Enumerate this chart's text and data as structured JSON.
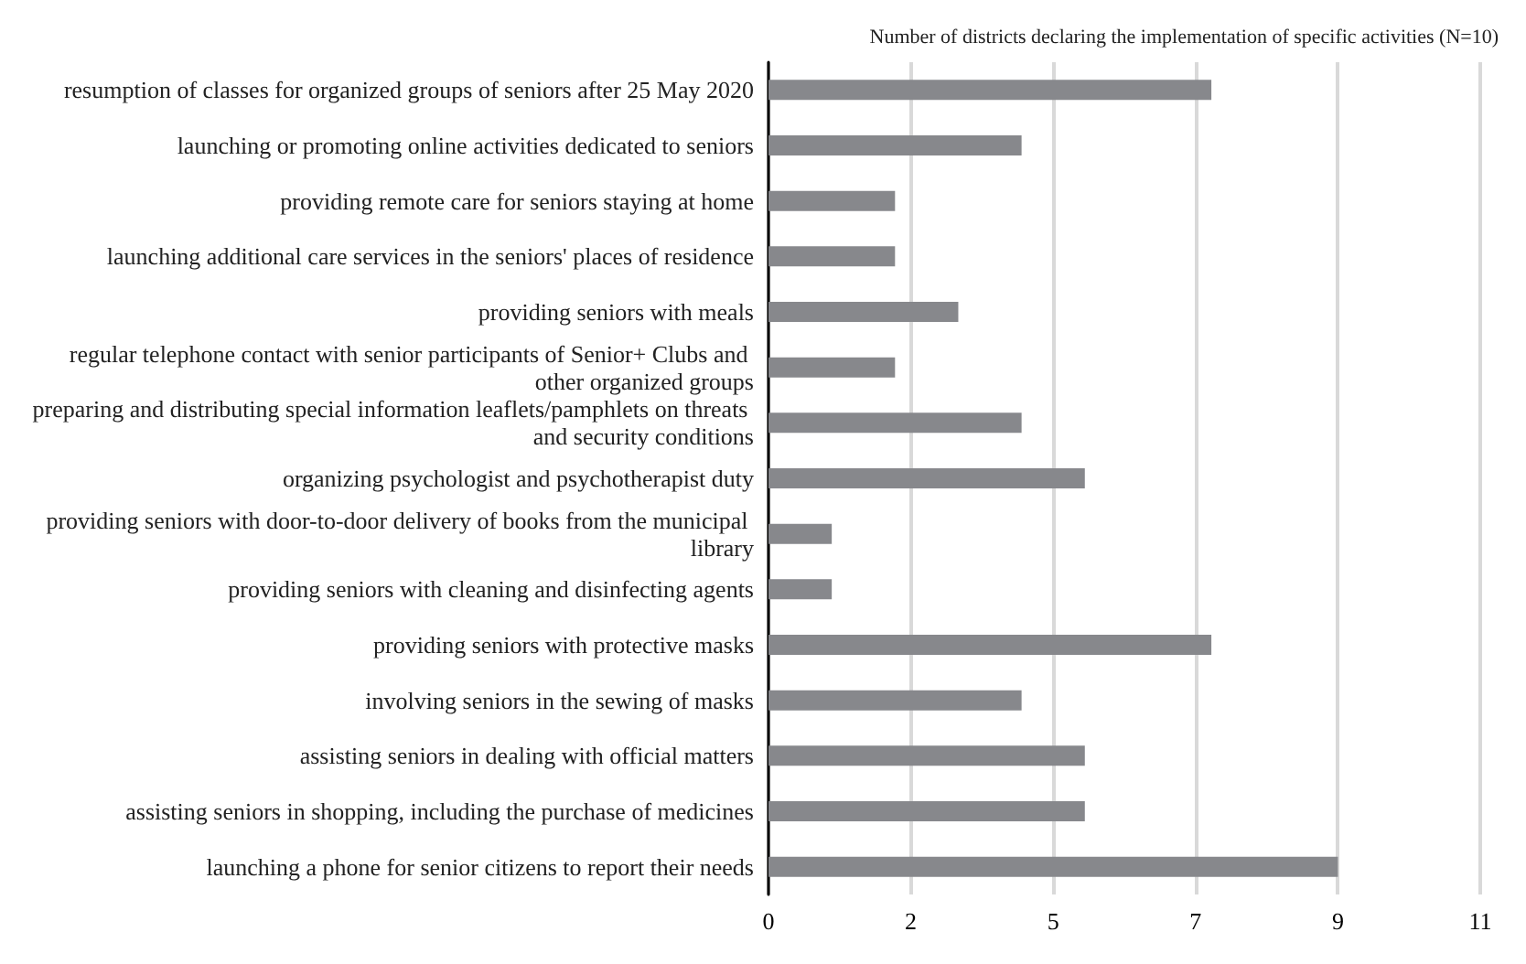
{
  "chart_data": {
    "type": "bar",
    "orientation": "horizontal",
    "title": "Number of districts declaring the implementation of specific activities (N=10)",
    "categories": [
      "resumption of classes for organized groups of seniors after 25 May 2020",
      "launching or promoting online activities dedicated to seniors",
      "providing remote care for seniors staying at home",
      "launching additional care services in the seniors' places of residence",
      "providing seniors with meals",
      "regular telephone contact with senior participants of Senior+ Clubs and other organized groups",
      "preparing and distributing special information leaflets/pamphlets on threats and security conditions",
      "organizing psychologist and psychotherapist duty",
      "providing seniors with door-to-door delivery of books from the municipal library",
      "providing seniors with cleaning and disinfecting agents",
      "providing seniors with protective masks",
      "involving seniors in the sewing of masks",
      "assisting seniors in dealing with official matters",
      "assisting seniors in shopping, including the purchase of medicines",
      "launching a phone for senior citizens to report their needs"
    ],
    "values": [
      7,
      4,
      2,
      2,
      3,
      2,
      4,
      5,
      1,
      1,
      7,
      4,
      5,
      5,
      9
    ],
    "color": "#87888c",
    "xlim": [
      0,
      11.25
    ],
    "xticks": [
      0,
      {
        "value": 2.25,
        "label": "2"
      },
      {
        "value": 4.5,
        "label": "5"
      },
      {
        "value": 6.75,
        "label": "7"
      },
      9,
      {
        "value": 11.25,
        "label": "11"
      }
    ],
    "grid": "x"
  }
}
